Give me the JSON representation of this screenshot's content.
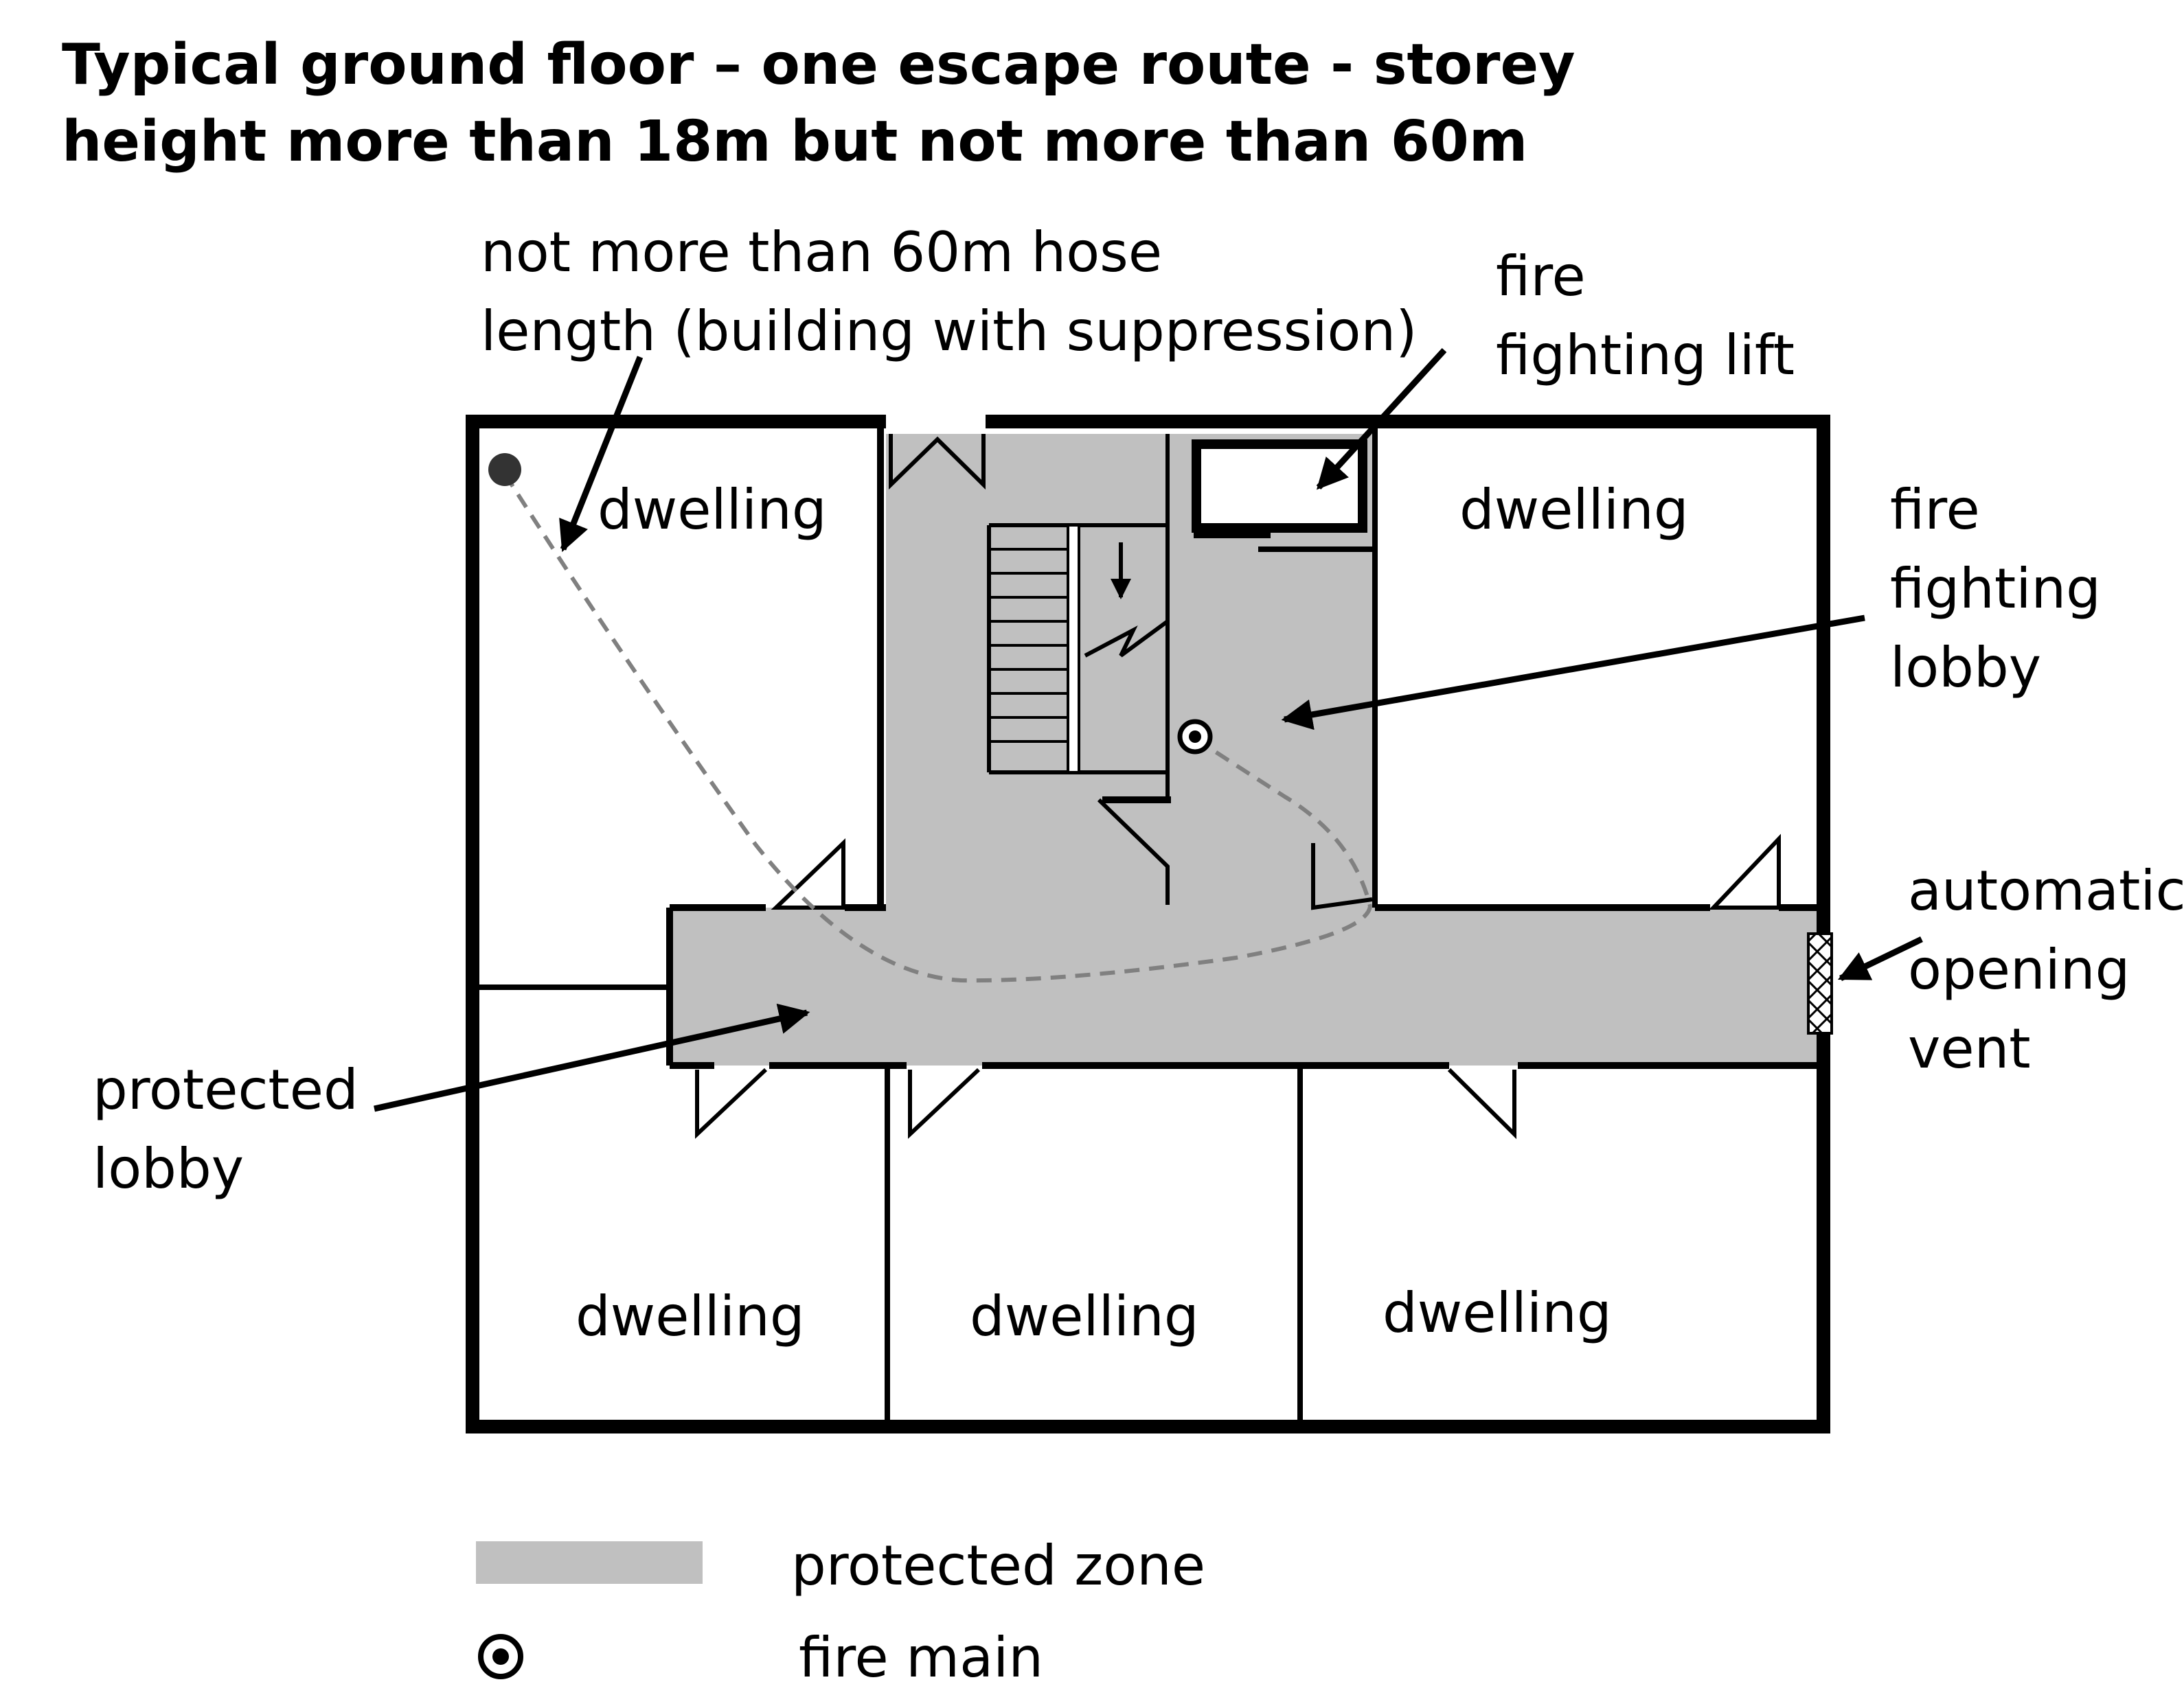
{
  "title": {
    "line1": "Typical ground floor – one escape route - storey",
    "line2": "height more than 18m but not more than 60m"
  },
  "annotations": {
    "hose_line1": "not more than 60m hose",
    "hose_line2": "length (building with suppression)",
    "lift_line1": "fire",
    "lift_line2": "fighting lift",
    "ff_lobby_line1": "fire",
    "ff_lobby_line2": "fighting",
    "ff_lobby_line3": "lobby",
    "vent_line1": "automatic",
    "vent_line2": "opening",
    "vent_line3": "vent",
    "prot_lobby_line1": "protected",
    "prot_lobby_line2": "lobby"
  },
  "rooms": {
    "top_left": "dwelling",
    "top_right": "dwelling",
    "bottom_left": "dwelling",
    "bottom_middle": "dwelling",
    "bottom_right": "dwelling"
  },
  "legend": {
    "protected_zone": "protected zone",
    "fire_main": "fire main"
  },
  "colors": {
    "protected_zone": "#c0c0c0",
    "walls": "#000000",
    "hose_route": "#808080"
  }
}
